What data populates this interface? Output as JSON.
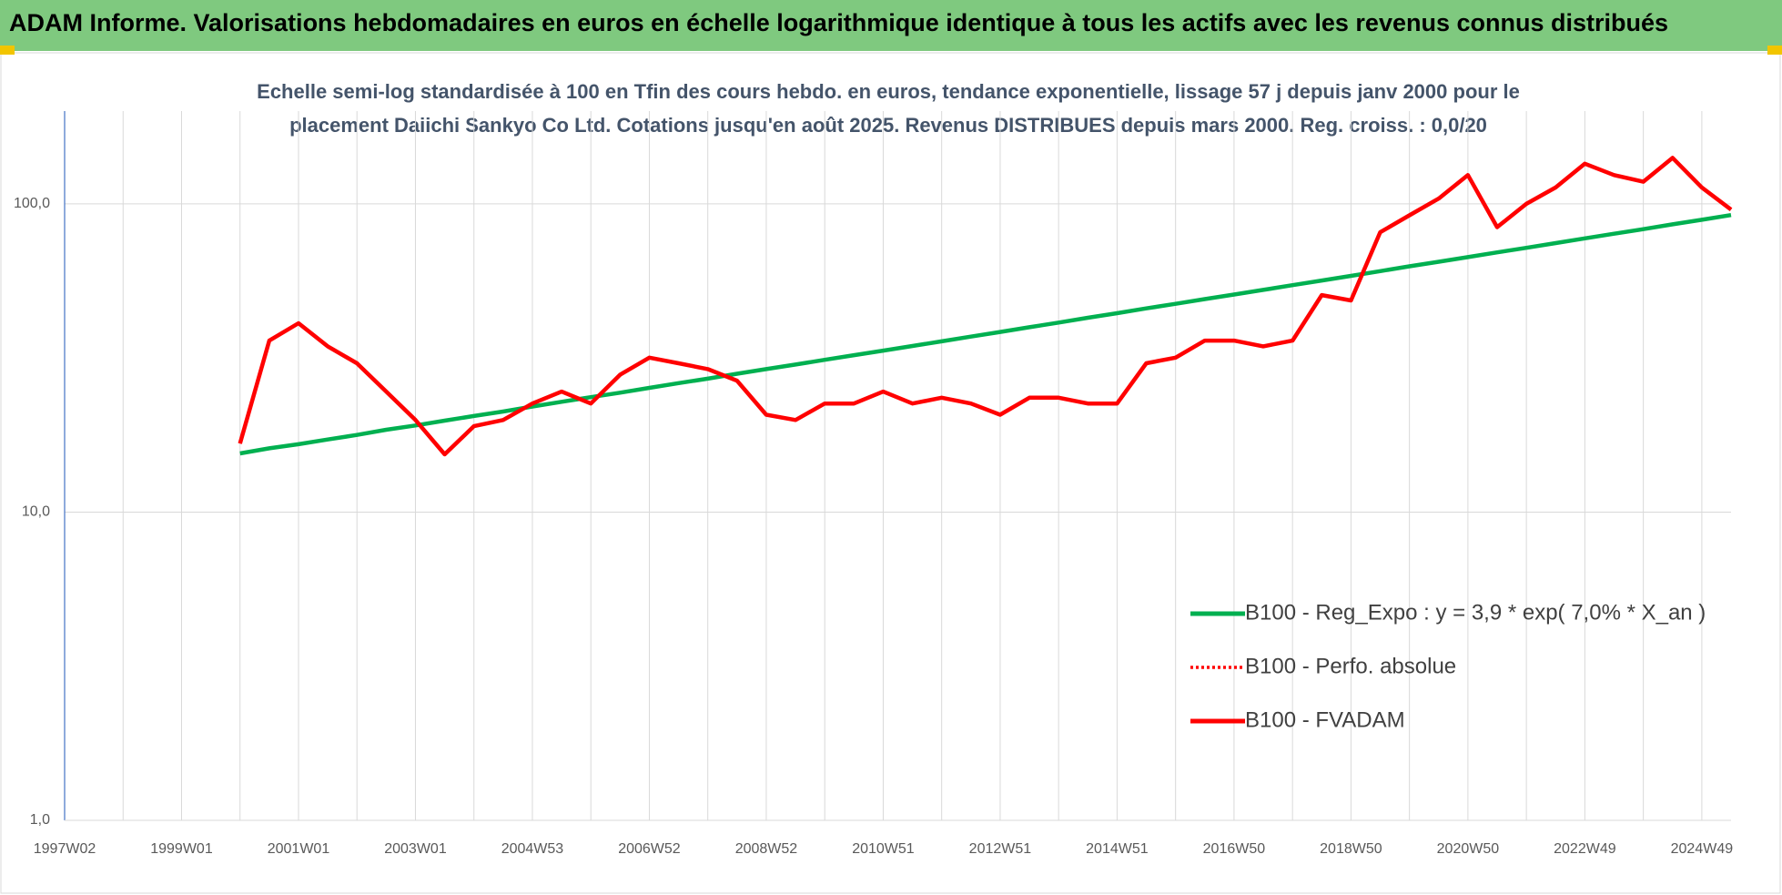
{
  "chart_data": {
    "type": "line",
    "title": "ADAM Informe. Valorisations hebdomadaires en euros en échelle logarithmique identique à tous les actifs avec les revenus connus distribués",
    "subtitle": [
      "Echelle semi-log standardisée à 100 en Tfin des cours hebdo. en euros, tendance exponentielle, lissage 57 j depuis janv 2000 pour le",
      "placement Daiichi Sankyo Co Ltd. Cotations jusqu'en août 2025. Revenus DISTRIBUES depuis mars 2000. Reg. croiss. : 0,0/20"
    ],
    "categories": [
      "1997W02",
      null,
      null,
      null,
      "1999W01",
      null,
      null,
      null,
      "2001W01",
      null,
      null,
      null,
      "2003W01",
      null,
      null,
      null,
      "2004W53",
      null,
      null,
      null,
      "2006W52",
      null,
      null,
      null,
      "2008W52",
      null,
      null,
      null,
      "2010W51",
      null,
      null,
      null,
      "2012W51",
      null,
      null,
      null,
      "2014W51",
      null,
      null,
      null,
      "2016W50",
      null,
      null,
      null,
      "2018W50",
      null,
      null,
      null,
      "2020W50",
      null,
      null,
      null,
      "2022W49",
      null,
      null,
      null,
      "2024W49",
      null
    ],
    "log_scale": true,
    "grid": true,
    "ylim": [
      1,
      200
    ],
    "yticks": [
      {
        "value": 1,
        "label": "1,0"
      },
      {
        "value": 10,
        "label": "10,0"
      },
      {
        "value": 100,
        "label": "100,0"
      }
    ],
    "series": [
      {
        "name": "B100 - Reg_Expo : y = 3,9 * exp( 7,0% *  X_an )",
        "color": "#00b050",
        "style": "solid",
        "values": [
          null,
          null,
          null,
          null,
          null,
          null,
          15.5,
          16.1,
          16.6,
          17.2,
          17.8,
          18.5,
          19.1,
          19.8,
          20.5,
          21.2,
          22.0,
          22.8,
          23.6,
          24.4,
          25.3,
          26.2,
          27.1,
          28.1,
          29.1,
          30.1,
          31.2,
          32.3,
          33.4,
          34.6,
          35.8,
          37.1,
          38.4,
          39.8,
          41.2,
          42.7,
          44.2,
          45.8,
          47.4,
          49.1,
          50.8,
          52.6,
          54.5,
          56.4,
          58.4,
          60.5,
          62.7,
          64.9,
          67.2,
          69.6,
          72.0,
          74.6,
          77.3,
          80.0,
          82.8,
          85.8,
          88.8,
          92.0
        ]
      },
      {
        "name": "B100 - Perfo. absolue",
        "color": "#ff0000",
        "style": "dotted",
        "values": [
          null,
          null,
          null,
          null,
          null,
          null,
          16.7,
          36,
          41,
          34.5,
          30.4,
          24.6,
          19.9,
          15.4,
          19.0,
          19.9,
          22.5,
          24.6,
          22.5,
          27.9,
          31.7,
          30.4,
          29.1,
          26.7,
          20.7,
          19.9,
          22.5,
          22.5,
          24.6,
          22.5,
          23.5,
          22.5,
          20.7,
          23.5,
          23.5,
          22.5,
          22.5,
          30.4,
          31.7,
          36,
          36,
          34.5,
          36,
          50.6,
          48.6,
          80.9,
          91.8,
          104,
          124,
          84,
          100,
          113,
          135,
          124,
          118,
          141,
          113,
          95.8
        ]
      },
      {
        "name": "B100 - FVADAM",
        "color": "#ff0000",
        "style": "solid",
        "values": [
          null,
          null,
          null,
          null,
          null,
          null,
          16.7,
          36,
          41,
          34.5,
          30.4,
          24.6,
          19.9,
          15.4,
          19.0,
          19.9,
          22.5,
          24.6,
          22.5,
          27.9,
          31.7,
          30.4,
          29.1,
          26.7,
          20.7,
          19.9,
          22.5,
          22.5,
          24.6,
          22.5,
          23.5,
          22.5,
          20.7,
          23.5,
          23.5,
          22.5,
          22.5,
          30.4,
          31.7,
          36,
          36,
          34.5,
          36,
          50.6,
          48.6,
          80.9,
          91.8,
          104,
          124,
          84,
          100,
          113,
          135,
          124,
          118,
          141,
          113,
          95.8
        ]
      }
    ]
  }
}
